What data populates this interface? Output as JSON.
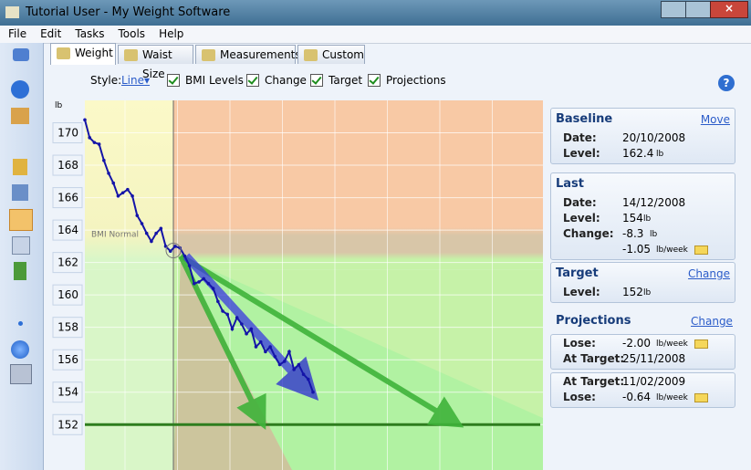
{
  "window": {
    "title": "Tutorial User - My Weight Software"
  },
  "menu": [
    "File",
    "Edit",
    "Tasks",
    "Tools",
    "Help"
  ],
  "tabs": [
    "Weight",
    "Waist Size",
    "Measurements",
    "Custom"
  ],
  "options": {
    "style_label": "Style:",
    "style_value": "Line",
    "checks": [
      "BMI Levels",
      "Change",
      "Target",
      "Projections"
    ]
  },
  "chart": {
    "type": "line",
    "y_unit": "lb",
    "band_label": "BMI Normal",
    "ylim": [
      149.2,
      172
    ],
    "yticks": [
      152,
      154,
      156,
      158,
      160,
      162,
      164,
      166,
      168,
      170
    ],
    "grid": true,
    "series": [
      {
        "color": "#1414a8",
        "values": [
          170.8,
          169.7,
          169.4,
          169.3,
          168.3,
          167.5,
          166.9,
          166.1,
          166.3,
          166.5,
          166.1,
          164.9,
          164.4,
          163.8,
          163.3,
          163.8,
          164.1,
          163.0,
          162.7,
          163.0,
          162.9,
          162.4,
          161.8,
          160.7,
          160.8,
          161.0,
          160.7,
          160.4,
          159.6,
          159.0,
          158.8,
          157.9,
          158.6,
          158.2,
          157.6,
          157.9,
          156.8,
          157.1,
          156.5,
          156.8,
          156.2,
          155.7,
          155.9,
          156.5,
          155.4,
          155.7,
          155.1,
          154.8,
          154.0
        ]
      }
    ],
    "target": 152,
    "target_color": "#2e7d1e"
  },
  "panels": [
    {
      "title": "Baseline",
      "action": "Move",
      "rows": [
        {
          "label": "Date:",
          "value": "20/10/2008"
        },
        {
          "label": "Level:",
          "value": "162.4",
          "unit": "lb"
        }
      ]
    },
    {
      "title": "Last",
      "rows": [
        {
          "label": "Date:",
          "value": "14/12/2008"
        },
        {
          "label": "Level:",
          "value": "154",
          "unit": "lb"
        },
        {
          "label": "Change:",
          "value": "-8.3",
          "unit": "lb"
        },
        {
          "value": "-1.05",
          "unit": "lb/week"
        }
      ]
    },
    {
      "title": "Target",
      "action": "Change",
      "rows": [
        {
          "label": "Level:",
          "value": "152",
          "unit": "lb"
        }
      ]
    }
  ],
  "projections": {
    "title": "Projections",
    "action": "Change",
    "boxes": [
      [
        {
          "label": "Lose:",
          "value": "-2.00",
          "unit": "lb/week"
        },
        {
          "label": "At Target:",
          "value": "25/11/2008"
        }
      ],
      [
        {
          "label": "At Target:",
          "value": "11/02/2009"
        },
        {
          "label": "Lose:",
          "value": "-0.64",
          "unit": "lb/week"
        }
      ]
    ]
  }
}
